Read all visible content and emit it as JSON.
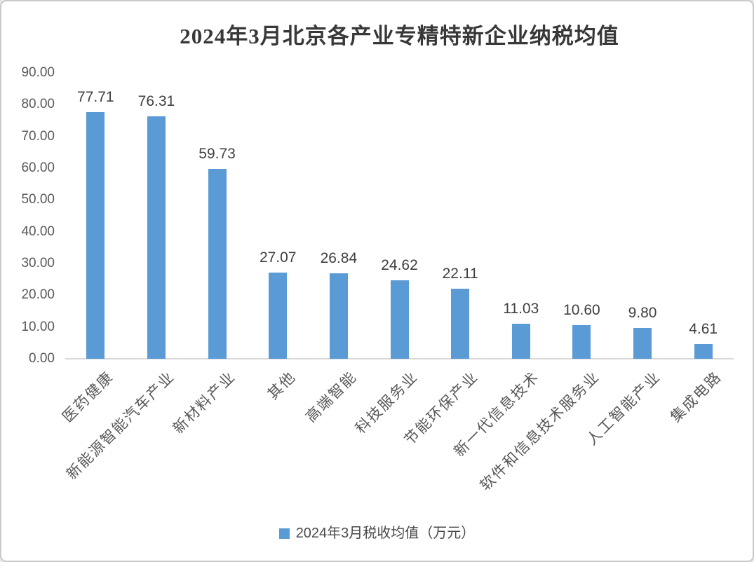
{
  "chart_data": {
    "type": "bar",
    "title": "2024年3月北京各产业专精特新企业纳税均值",
    "categories": [
      "医药健康",
      "新能源智能汽车产业",
      "新材料产业",
      "其他",
      "高端智能",
      "科技服务业",
      "节能环保产业",
      "新一代信息技术",
      "软件和信息技术服务业",
      "人工智能产业",
      "集成电路"
    ],
    "values": [
      77.71,
      76.31,
      59.73,
      27.07,
      26.84,
      24.62,
      22.11,
      11.03,
      10.6,
      9.8,
      4.61
    ],
    "value_labels": [
      "77.71",
      "76.31",
      "59.73",
      "27.07",
      "26.84",
      "24.62",
      "22.11",
      "11.03",
      "10.60",
      "9.80",
      "4.61"
    ],
    "series_name": "2024年3月税收均值（万元）",
    "xlabel": "",
    "ylabel": "",
    "ylim": [
      0,
      90
    ],
    "y_tick_step": 10,
    "y_tick_labels": [
      "0.00",
      "10.00",
      "20.00",
      "30.00",
      "40.00",
      "50.00",
      "60.00",
      "70.00",
      "80.00",
      "90.00"
    ],
    "grid": false,
    "legend_position": "bottom",
    "category_label_rotation_deg": 45,
    "colors": {
      "bar": "#5B9BD5",
      "axis_line": "#D9D9D9",
      "title_text": "#383838",
      "value_label_text": "#404040",
      "axis_label_text": "#595959",
      "chart_border": "#C9C9C9",
      "background": "#FFFFFF"
    }
  }
}
